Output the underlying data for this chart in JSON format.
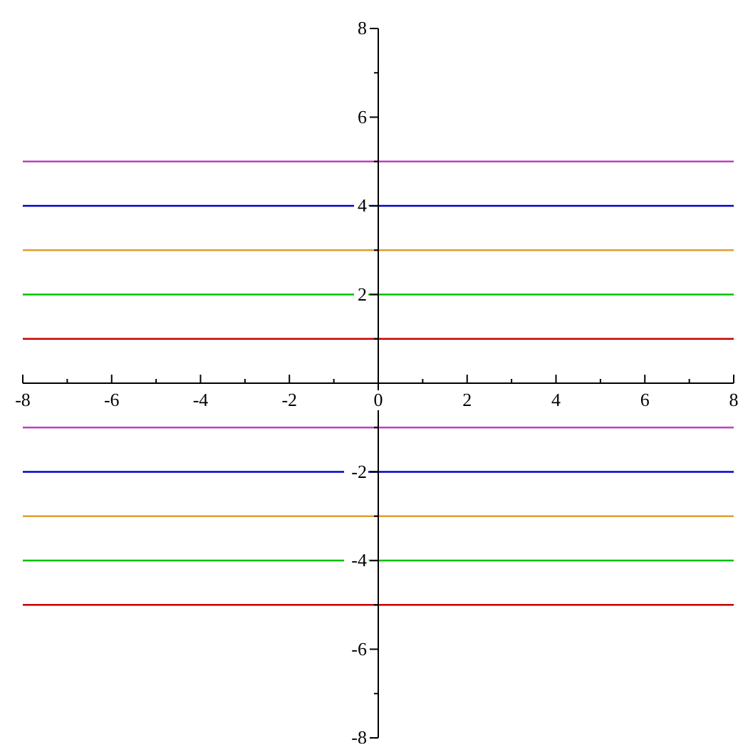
{
  "chart_data": {
    "type": "line",
    "x": [
      -8,
      8
    ],
    "series": [
      {
        "color": "#c040c0",
        "values": [
          5,
          5
        ]
      },
      {
        "color": "#0000c8",
        "values": [
          4,
          4
        ]
      },
      {
        "color": "#e0a030",
        "values": [
          3,
          3
        ]
      },
      {
        "color": "#00c000",
        "values": [
          2,
          2
        ]
      },
      {
        "color": "#c80000",
        "values": [
          1,
          1
        ]
      },
      {
        "color": "#c040c0",
        "values": [
          -1,
          -1
        ]
      },
      {
        "color": "#0000c8",
        "values": [
          -2,
          -2
        ]
      },
      {
        "color": "#e0a030",
        "values": [
          -3,
          -3
        ]
      },
      {
        "color": "#00c000",
        "values": [
          -4,
          -4
        ]
      },
      {
        "color": "#c80000",
        "values": [
          -5,
          -5
        ]
      }
    ],
    "xlim": [
      -8,
      8
    ],
    "ylim": [
      -8,
      8
    ],
    "xticks": [
      -8,
      {
        "value": -7,
        "label": null
      },
      -6,
      {
        "value": -5,
        "label": null
      },
      -4,
      {
        "value": -3,
        "label": null
      },
      -2,
      {
        "value": -1,
        "label": null
      },
      0,
      {
        "value": 1,
        "label": null
      },
      2,
      {
        "value": 3,
        "label": null
      },
      4,
      {
        "value": 5,
        "label": null
      },
      6,
      {
        "value": 7,
        "label": null
      },
      8
    ],
    "yticks": [
      -8,
      {
        "value": -7,
        "label": null
      },
      -6,
      {
        "value": -5,
        "label": null
      },
      -4,
      {
        "value": -3,
        "label": null
      },
      -2,
      {
        "value": -1,
        "label": null
      },
      {
        "value": 0,
        "label": null
      },
      {
        "value": 1,
        "label": null
      },
      2,
      {
        "value": 3,
        "label": null
      },
      4,
      {
        "value": 5,
        "label": null
      },
      6,
      {
        "value": 7,
        "label": null
      },
      8
    ],
    "marker": "none",
    "line_style": "solid",
    "legend": false,
    "grid": false
  }
}
